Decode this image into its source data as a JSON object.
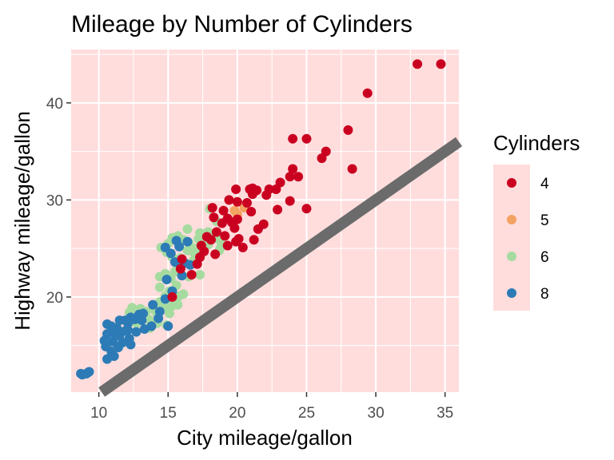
{
  "chart_data": {
    "type": "scatter",
    "title": "Mileage by Number of Cylinders",
    "xlabel": "City mileage/gallon",
    "ylabel": "Highway mileage/gallon",
    "xlim": [
      8,
      36
    ],
    "ylim": [
      10.2,
      45.5
    ],
    "xticks": [
      10,
      15,
      20,
      25,
      30,
      35
    ],
    "yticks": [
      20,
      30,
      40
    ],
    "grid": true,
    "panel_background": "#ffdddd",
    "reference_line": {
      "slope": 1,
      "intercept": 0,
      "color": "#6b6b6b"
    },
    "legend": {
      "title": "Cylinders",
      "placement": "right"
    },
    "series": [
      {
        "name": "4",
        "color": "#ca0020",
        "points": [
          [
            34.7,
            44
          ],
          [
            33,
            44
          ],
          [
            29.4,
            41
          ],
          [
            28,
            37.2
          ],
          [
            24,
            36.3
          ],
          [
            25,
            36.3
          ],
          [
            26.4,
            35
          ],
          [
            26.1,
            34.3
          ],
          [
            28.3,
            33.2
          ],
          [
            24,
            33.2
          ],
          [
            24.4,
            32.4
          ],
          [
            23.8,
            32.4
          ],
          [
            23.1,
            31.8
          ],
          [
            22.3,
            31.1
          ],
          [
            22.8,
            31.1
          ],
          [
            21.1,
            31.2
          ],
          [
            20.9,
            31.1
          ],
          [
            19.9,
            31.1
          ],
          [
            21.4,
            31
          ],
          [
            22.1,
            30.5
          ],
          [
            21.1,
            30.6
          ],
          [
            19.4,
            30
          ],
          [
            20,
            29.8
          ],
          [
            20.7,
            29.7
          ],
          [
            19,
            28.9
          ],
          [
            18.2,
            29.2
          ],
          [
            21,
            28.8
          ],
          [
            23.8,
            29.9
          ],
          [
            22.9,
            29
          ],
          [
            25,
            29.1
          ],
          [
            18.3,
            28.2
          ],
          [
            19.3,
            28.1
          ],
          [
            20,
            28
          ],
          [
            19.6,
            27.7
          ],
          [
            19.8,
            27.1
          ],
          [
            21.9,
            27.5
          ],
          [
            21.5,
            27
          ],
          [
            18.9,
            27.6
          ],
          [
            18.5,
            26.7
          ],
          [
            19.1,
            26.3
          ],
          [
            17.8,
            26.2
          ],
          [
            18.1,
            25.9
          ],
          [
            19.9,
            25.7
          ],
          [
            19.3,
            25.3
          ],
          [
            20.1,
            26
          ],
          [
            21.2,
            25.9
          ],
          [
            20.4,
            25.1
          ],
          [
            17.6,
            24.7
          ],
          [
            18.4,
            24.4
          ],
          [
            17.3,
            24.1
          ],
          [
            17.1,
            23.4
          ],
          [
            16,
            23.9
          ],
          [
            17.4,
            25.3
          ],
          [
            16.7,
            22.3
          ],
          [
            15.9,
            22.9
          ],
          [
            15.3,
            20
          ]
        ]
      },
      {
        "name": "5",
        "color": "#f4a261",
        "points": [
          [
            20.5,
            29.2
          ],
          [
            20,
            28.5
          ],
          [
            19.8,
            28.9
          ]
        ]
      },
      {
        "name": "6",
        "color": "#a6dba0",
        "points": [
          [
            18,
            29.1
          ],
          [
            17.3,
            26.6
          ],
          [
            17.2,
            26
          ],
          [
            17.7,
            26.5
          ],
          [
            17.9,
            26.7
          ],
          [
            18.3,
            26.3
          ],
          [
            18.6,
            26
          ],
          [
            18.9,
            25.4
          ],
          [
            18.8,
            25.1
          ],
          [
            18.7,
            24.8
          ],
          [
            17.6,
            25.9
          ],
          [
            17.9,
            25.4
          ],
          [
            17.3,
            24.8
          ],
          [
            17,
            25
          ],
          [
            16.9,
            24.5
          ],
          [
            16.4,
            24.8
          ],
          [
            16.5,
            25.6
          ],
          [
            16.1,
            25.9
          ],
          [
            15.7,
            26.3
          ],
          [
            15.3,
            26.1
          ],
          [
            15,
            25.5
          ],
          [
            14.5,
            25.1
          ],
          [
            14.9,
            24.6
          ],
          [
            15.3,
            24.1
          ],
          [
            15.9,
            24
          ],
          [
            16.2,
            23.5
          ],
          [
            16.8,
            23.7
          ],
          [
            17.3,
            22.3
          ],
          [
            15.7,
            23
          ],
          [
            15.5,
            22.6
          ],
          [
            16.5,
            22.1
          ],
          [
            14.8,
            22.4
          ],
          [
            14.4,
            22.1
          ],
          [
            15.2,
            21.9
          ],
          [
            15.6,
            21.2
          ],
          [
            15.1,
            20.6
          ],
          [
            14.8,
            20.1
          ],
          [
            14.4,
            21
          ],
          [
            15.8,
            20.1
          ],
          [
            15.4,
            19.6
          ],
          [
            14.4,
            19.5
          ],
          [
            14.8,
            19
          ],
          [
            15.3,
            19.1
          ],
          [
            14,
            18.7
          ],
          [
            13.4,
            18.5
          ],
          [
            14.2,
            18.3
          ],
          [
            15.1,
            18.3
          ],
          [
            13,
            18.8
          ],
          [
            12.4,
            18.9
          ],
          [
            13.6,
            17.7
          ],
          [
            14.2,
            17.3
          ],
          [
            14.9,
            17.1
          ],
          [
            13.7,
            16.8
          ],
          [
            12.7,
            17.3
          ],
          [
            13.4,
            17.9
          ],
          [
            12.2,
            18.4
          ],
          [
            15.7,
            19.2
          ],
          [
            16.1,
            20.3
          ],
          [
            18.5,
            27.8
          ],
          [
            16.4,
            27
          ]
        ]
      },
      {
        "name": "8",
        "color": "#2c7bb6",
        "points": [
          [
            15.6,
            25.8
          ],
          [
            16.4,
            25.7
          ],
          [
            15.8,
            25.2
          ],
          [
            14.8,
            25.1
          ],
          [
            15.2,
            24.5
          ],
          [
            15.5,
            23.6
          ],
          [
            16.2,
            23.5
          ],
          [
            16.6,
            23.3
          ],
          [
            16,
            22.2
          ],
          [
            14.9,
            21.8
          ],
          [
            15.3,
            20.6
          ],
          [
            14.8,
            19.8
          ],
          [
            13.9,
            19.2
          ],
          [
            14.4,
            18.5
          ],
          [
            13.2,
            18.3
          ],
          [
            12.9,
            18.2
          ],
          [
            12.3,
            17.9
          ],
          [
            12.6,
            17.7
          ],
          [
            13.1,
            17.6
          ],
          [
            12.1,
            17.3
          ],
          [
            11.9,
            17.6
          ],
          [
            11.5,
            17.6
          ],
          [
            10.9,
            17
          ],
          [
            11.3,
            16.8
          ],
          [
            10.6,
            17.2
          ],
          [
            12.1,
            16.6
          ],
          [
            13.3,
            16.7
          ],
          [
            12.7,
            16.4
          ],
          [
            11.9,
            16.5
          ],
          [
            11.1,
            16.3
          ],
          [
            11.5,
            16
          ],
          [
            10.6,
            16.2
          ],
          [
            12.2,
            15.7
          ],
          [
            11.7,
            15.3
          ],
          [
            11,
            15.4
          ],
          [
            10.4,
            15.5
          ],
          [
            11.4,
            14.8
          ],
          [
            10.5,
            14.9
          ],
          [
            10.9,
            14.4
          ],
          [
            11.1,
            13.9
          ],
          [
            10.6,
            13.6
          ],
          [
            9.2,
            12.2
          ],
          [
            9.3,
            12.3
          ],
          [
            9.1,
            12.1
          ],
          [
            8.8,
            12
          ],
          [
            8.7,
            12.1
          ],
          [
            12.3,
            15.1
          ],
          [
            13.8,
            17
          ],
          [
            14.3,
            17.8
          ],
          [
            15,
            17
          ]
        ]
      }
    ]
  }
}
